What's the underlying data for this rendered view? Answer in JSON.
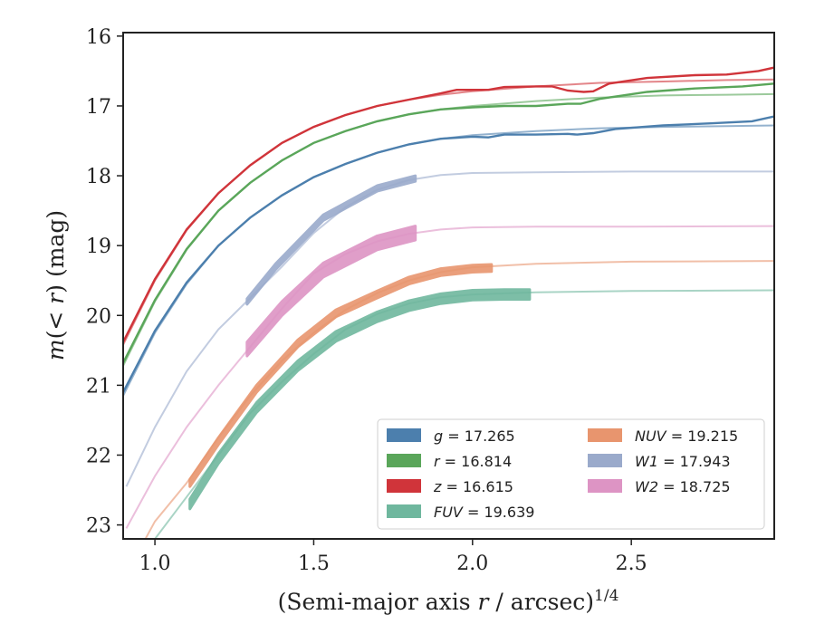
{
  "chart_data": {
    "type": "line",
    "xlabel": "(Semi-major axis r / arcsec)^{1/4}",
    "ylabel": "m(<r) (mag)",
    "xlim": [
      0.9,
      2.95
    ],
    "ylim": [
      23.2,
      15.95
    ],
    "y_inverted": true,
    "xticks": [
      1.0,
      1.5,
      2.0,
      2.5
    ],
    "xtick_labels": [
      "1.0",
      "1.5",
      "2.0",
      "2.5"
    ],
    "yticks": [
      16,
      17,
      18,
      19,
      20,
      21,
      22,
      23
    ],
    "ytick_labels": [
      "16",
      "17",
      "18",
      "19",
      "20",
      "21",
      "22",
      "23"
    ],
    "grid": false,
    "legend_position": "lower-right",
    "series": [
      {
        "name": "g = 17.265",
        "legend": {
          "prefix": "g",
          "value": "17.265"
        },
        "color": "#4c7fad",
        "model": [
          [
            0.9,
            21.15
          ],
          [
            1.0,
            20.25
          ],
          [
            1.1,
            19.55
          ],
          [
            1.2,
            19.0
          ],
          [
            1.3,
            18.6
          ],
          [
            1.4,
            18.28
          ],
          [
            1.5,
            18.02
          ],
          [
            1.6,
            17.83
          ],
          [
            1.7,
            17.67
          ],
          [
            1.8,
            17.55
          ],
          [
            1.9,
            17.47
          ],
          [
            2.0,
            17.42
          ],
          [
            2.2,
            17.36
          ],
          [
            2.4,
            17.32
          ],
          [
            2.6,
            17.3
          ],
          [
            2.8,
            17.29
          ],
          [
            2.95,
            17.28
          ]
        ],
        "data": [
          [
            0.9,
            21.1
          ],
          [
            1.0,
            20.22
          ],
          [
            1.1,
            19.53
          ],
          [
            1.2,
            19.0
          ],
          [
            1.3,
            18.6
          ],
          [
            1.4,
            18.28
          ],
          [
            1.5,
            18.02
          ],
          [
            1.6,
            17.83
          ],
          [
            1.7,
            17.67
          ],
          [
            1.8,
            17.55
          ],
          [
            1.9,
            17.47
          ],
          [
            2.0,
            17.44
          ],
          [
            2.05,
            17.45
          ],
          [
            2.1,
            17.41
          ],
          [
            2.2,
            17.41
          ],
          [
            2.3,
            17.4
          ],
          [
            2.33,
            17.41
          ],
          [
            2.38,
            17.39
          ],
          [
            2.45,
            17.33
          ],
          [
            2.6,
            17.28
          ],
          [
            2.75,
            17.25
          ],
          [
            2.88,
            17.22
          ],
          [
            2.95,
            17.15
          ]
        ],
        "band": null
      },
      {
        "name": "r = 16.814",
        "legend": {
          "prefix": "r",
          "value": "16.814"
        },
        "color": "#5aa65a",
        "model": [
          [
            0.9,
            20.72
          ],
          [
            1.0,
            19.8
          ],
          [
            1.1,
            19.06
          ],
          [
            1.2,
            18.5
          ],
          [
            1.3,
            18.1
          ],
          [
            1.4,
            17.78
          ],
          [
            1.5,
            17.53
          ],
          [
            1.6,
            17.36
          ],
          [
            1.7,
            17.22
          ],
          [
            1.8,
            17.12
          ],
          [
            1.9,
            17.05
          ],
          [
            2.0,
            17.0
          ],
          [
            2.2,
            16.93
          ],
          [
            2.4,
            16.88
          ],
          [
            2.6,
            16.85
          ],
          [
            2.8,
            16.84
          ],
          [
            2.95,
            16.83
          ]
        ],
        "data": [
          [
            0.9,
            20.68
          ],
          [
            1.0,
            19.78
          ],
          [
            1.1,
            19.05
          ],
          [
            1.2,
            18.5
          ],
          [
            1.3,
            18.1
          ],
          [
            1.4,
            17.78
          ],
          [
            1.5,
            17.53
          ],
          [
            1.6,
            17.36
          ],
          [
            1.7,
            17.22
          ],
          [
            1.8,
            17.12
          ],
          [
            1.9,
            17.05
          ],
          [
            2.0,
            17.02
          ],
          [
            2.1,
            17.0
          ],
          [
            2.2,
            17.0
          ],
          [
            2.3,
            16.97
          ],
          [
            2.34,
            16.97
          ],
          [
            2.4,
            16.9
          ],
          [
            2.55,
            16.8
          ],
          [
            2.7,
            16.75
          ],
          [
            2.85,
            16.72
          ],
          [
            2.95,
            16.68
          ]
        ],
        "band": null
      },
      {
        "name": "z = 16.615",
        "legend": {
          "prefix": "z",
          "value": "16.615"
        },
        "color": "#d0343a",
        "model": [
          [
            0.9,
            20.42
          ],
          [
            1.0,
            19.5
          ],
          [
            1.1,
            18.78
          ],
          [
            1.2,
            18.25
          ],
          [
            1.3,
            17.85
          ],
          [
            1.4,
            17.53
          ],
          [
            1.5,
            17.3
          ],
          [
            1.6,
            17.13
          ],
          [
            1.7,
            17.0
          ],
          [
            1.8,
            16.91
          ],
          [
            1.9,
            16.84
          ],
          [
            2.0,
            16.79
          ],
          [
            2.2,
            16.72
          ],
          [
            2.4,
            16.67
          ],
          [
            2.6,
            16.65
          ],
          [
            2.8,
            16.63
          ],
          [
            2.95,
            16.62
          ]
        ],
        "data": [
          [
            0.9,
            20.38
          ],
          [
            1.0,
            19.48
          ],
          [
            1.1,
            18.77
          ],
          [
            1.2,
            18.25
          ],
          [
            1.3,
            17.85
          ],
          [
            1.4,
            17.53
          ],
          [
            1.5,
            17.3
          ],
          [
            1.6,
            17.13
          ],
          [
            1.7,
            17.0
          ],
          [
            1.8,
            16.91
          ],
          [
            1.9,
            16.82
          ],
          [
            1.95,
            16.77
          ],
          [
            2.05,
            16.77
          ],
          [
            2.1,
            16.73
          ],
          [
            2.2,
            16.72
          ],
          [
            2.25,
            16.72
          ],
          [
            2.3,
            16.78
          ],
          [
            2.35,
            16.8
          ],
          [
            2.38,
            16.79
          ],
          [
            2.43,
            16.68
          ],
          [
            2.55,
            16.6
          ],
          [
            2.7,
            16.56
          ],
          [
            2.8,
            16.55
          ],
          [
            2.9,
            16.5
          ],
          [
            2.95,
            16.45
          ]
        ],
        "band": null
      },
      {
        "name": "FUV = 19.639",
        "legend": {
          "prefix": "FUV",
          "value": "19.639"
        },
        "color": "#6fb79e",
        "model": [
          [
            1.0,
            23.2
          ],
          [
            1.1,
            22.6
          ],
          [
            1.2,
            22.0
          ],
          [
            1.3,
            21.4
          ],
          [
            1.4,
            20.95
          ],
          [
            1.5,
            20.55
          ],
          [
            1.6,
            20.2
          ],
          [
            1.7,
            19.98
          ],
          [
            1.8,
            19.83
          ],
          [
            1.9,
            19.74
          ],
          [
            2.0,
            19.7
          ],
          [
            2.2,
            19.67
          ],
          [
            2.5,
            19.65
          ],
          [
            2.95,
            19.64
          ]
        ],
        "data": [
          [
            1.11,
            22.7
          ],
          [
            1.2,
            22.05
          ],
          [
            1.32,
            21.32
          ],
          [
            1.45,
            20.72
          ],
          [
            1.57,
            20.3
          ],
          [
            1.7,
            20.02
          ],
          [
            1.8,
            19.86
          ],
          [
            1.9,
            19.76
          ],
          [
            2.0,
            19.71
          ],
          [
            2.1,
            19.7
          ],
          [
            2.18,
            19.7
          ]
        ],
        "band": 0.07
      },
      {
        "name": "NUV = 19.215",
        "legend": {
          "prefix": "NUV",
          "value": "19.215"
        },
        "color": "#e8956e",
        "model": [
          [
            0.97,
            23.2
          ],
          [
            1.0,
            22.95
          ],
          [
            1.1,
            22.4
          ],
          [
            1.2,
            21.75
          ],
          [
            1.3,
            21.15
          ],
          [
            1.4,
            20.65
          ],
          [
            1.5,
            20.25
          ],
          [
            1.6,
            19.92
          ],
          [
            1.7,
            19.68
          ],
          [
            1.8,
            19.5
          ],
          [
            1.9,
            19.38
          ],
          [
            2.0,
            19.31
          ],
          [
            2.2,
            19.26
          ],
          [
            2.5,
            19.23
          ],
          [
            2.95,
            19.22
          ]
        ],
        "data": [
          [
            1.11,
            22.4
          ],
          [
            1.2,
            21.8
          ],
          [
            1.32,
            21.05
          ],
          [
            1.45,
            20.4
          ],
          [
            1.57,
            19.97
          ],
          [
            1.7,
            19.7
          ],
          [
            1.8,
            19.5
          ],
          [
            1.9,
            19.38
          ],
          [
            2.0,
            19.33
          ],
          [
            2.06,
            19.32
          ]
        ],
        "band": 0.05
      },
      {
        "name": "W1 = 17.943",
        "legend": {
          "prefix": "W1",
          "value": "17.943"
        },
        "color": "#9aaacb",
        "model": [
          [
            0.91,
            22.45
          ],
          [
            1.0,
            21.6
          ],
          [
            1.1,
            20.8
          ],
          [
            1.2,
            20.2
          ],
          [
            1.3,
            19.75
          ],
          [
            1.4,
            19.3
          ],
          [
            1.5,
            18.82
          ],
          [
            1.6,
            18.45
          ],
          [
            1.7,
            18.2
          ],
          [
            1.8,
            18.06
          ],
          [
            1.9,
            17.99
          ],
          [
            2.0,
            17.96
          ],
          [
            2.2,
            17.95
          ],
          [
            2.5,
            17.94
          ],
          [
            2.95,
            17.94
          ]
        ],
        "data": [
          [
            1.29,
            19.8
          ],
          [
            1.38,
            19.3
          ],
          [
            1.53,
            18.6
          ],
          [
            1.7,
            18.18
          ],
          [
            1.82,
            18.04
          ]
        ],
        "band": 0.04
      },
      {
        "name": "W2 = 18.725",
        "legend": {
          "prefix": "W2",
          "value": "18.725"
        },
        "color": "#dd94c4",
        "model": [
          [
            0.91,
            23.05
          ],
          [
            1.0,
            22.3
          ],
          [
            1.1,
            21.6
          ],
          [
            1.2,
            21.0
          ],
          [
            1.3,
            20.45
          ],
          [
            1.4,
            19.9
          ],
          [
            1.5,
            19.4
          ],
          [
            1.6,
            19.12
          ],
          [
            1.7,
            18.94
          ],
          [
            1.8,
            18.83
          ],
          [
            1.9,
            18.77
          ],
          [
            2.0,
            18.74
          ],
          [
            2.2,
            18.73
          ],
          [
            2.5,
            18.73
          ],
          [
            2.95,
            18.72
          ]
        ],
        "data": [
          [
            1.29,
            20.48
          ],
          [
            1.4,
            19.9
          ],
          [
            1.53,
            19.35
          ],
          [
            1.7,
            18.96
          ],
          [
            1.82,
            18.82
          ]
        ],
        "band": 0.1
      }
    ]
  }
}
